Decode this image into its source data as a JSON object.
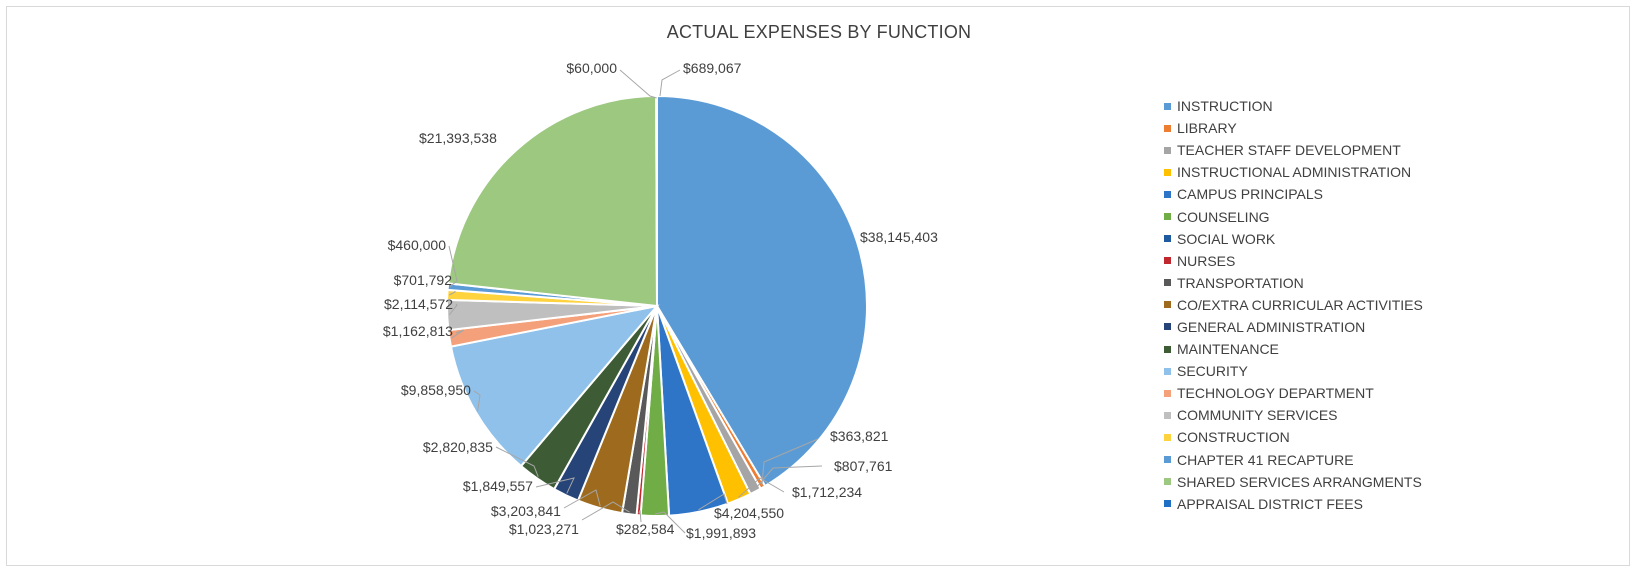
{
  "chart_data": {
    "type": "pie",
    "title": "ACTUAL EXPENSES BY FUNCTION",
    "legend_position": "right",
    "start_angle_deg": 0,
    "direction": "clockwise",
    "slices": [
      {
        "name": "INSTRUCTION",
        "value": 38145403,
        "label": "$38,145,403",
        "color": "#5b9bd5"
      },
      {
        "name": "LIBRARY",
        "value": 363821,
        "label": "$363,821",
        "color": "#ed7d31"
      },
      {
        "name": "TEACHER STAFF DEVELOPMENT",
        "value": 807761,
        "label": "$807,761",
        "color": "#a5a5a5"
      },
      {
        "name": "INSTRUCTIONAL ADMINISTRATION",
        "value": 1712234,
        "label": "$1,712,234",
        "color": "#ffc000"
      },
      {
        "name": "CAMPUS PRINCIPALS",
        "value": 4204550,
        "label": "$4,204,550",
        "color": "#2e75c8"
      },
      {
        "name": "COUNSELING",
        "value": 1991893,
        "label": "$1,991,893",
        "color": "#70ad47"
      },
      {
        "name": "SOCIAL WORK",
        "value": 0,
        "label": "",
        "color": "#1f5aa0"
      },
      {
        "name": "NURSES",
        "value": 282584,
        "label": "$282,584",
        "color": "#c0282d"
      },
      {
        "name": "TRANSPORTATION",
        "value": 1023271,
        "label": "$1,023,271",
        "color": "#595959"
      },
      {
        "name": "CO/EXTRA CURRICULAR ACTIVITIES",
        "value": 3203841,
        "label": "$3,203,841",
        "color": "#9e6b1e"
      },
      {
        "name": "GENERAL ADMINISTRATION",
        "value": 1849557,
        "label": "$1,849,557",
        "color": "#264478"
      },
      {
        "name": "MAINTENANCE",
        "value": 2820835,
        "label": "$2,820,835",
        "color": "#3d5c36"
      },
      {
        "name": "SECURITY",
        "value": 9858950,
        "label": "$9,858,950",
        "color": "#8fc1ea"
      },
      {
        "name": "TECHNOLOGY DEPARTMENT",
        "value": 1162813,
        "label": "$1,162,813",
        "color": "#f4a07a"
      },
      {
        "name": "COMMUNITY SERVICES",
        "value": 2114572,
        "label": "$2,114,572",
        "color": "#bfbfbf"
      },
      {
        "name": "CONSTRUCTION",
        "value": 701792,
        "label": "$701,792",
        "color": "#ffd33d"
      },
      {
        "name": "CHAPTER 41 RECAPTURE",
        "value": 460000,
        "label": "$460,000",
        "color": "#5b9bd5"
      },
      {
        "name": "SHARED SERVICES ARRANGMENTS",
        "value": 21393538,
        "label": "$21,393,538",
        "color": "#9dc880"
      },
      {
        "name": "APPRAISAL DISTRICT FEES",
        "value": 60000,
        "label": "$60,000",
        "color": "#1f6fc5"
      }
    ],
    "unassigned_labels": [
      {
        "label": "$689,067"
      }
    ]
  }
}
